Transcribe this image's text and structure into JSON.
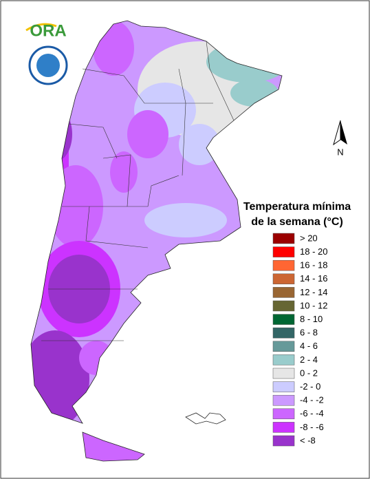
{
  "logo": {
    "text": "ORA"
  },
  "compass": {
    "label": "N"
  },
  "legend": {
    "title_lines": [
      "Temperatura mínima",
      "de la semana (°C)"
    ],
    "items": [
      {
        "label": "> 20",
        "color": "#9b0000"
      },
      {
        "label": "18 - 20",
        "color": "#ff0000"
      },
      {
        "label": "16 - 18",
        "color": "#ff6633"
      },
      {
        "label": "14 - 16",
        "color": "#cc6633"
      },
      {
        "label": "12 - 14",
        "color": "#996633"
      },
      {
        "label": "10 - 12",
        "color": "#666633"
      },
      {
        "label": "8 - 10",
        "color": "#006633"
      },
      {
        "label": "6 - 8",
        "color": "#336666"
      },
      {
        "label": "4 - 6",
        "color": "#669999"
      },
      {
        "label": "2 - 4",
        "color": "#99cccc"
      },
      {
        "label": "0 - 2",
        "color": "#e6e6e6"
      },
      {
        "label": "-2 - 0",
        "color": "#ccccff"
      },
      {
        "label": "-4 - -2",
        "color": "#cc99ff"
      },
      {
        "label": "-6 - -4",
        "color": "#cc66ff"
      },
      {
        "label": "-8 - -6",
        "color": "#cc33ff"
      },
      {
        "label": "< -8",
        "color": "#9933cc"
      }
    ]
  }
}
